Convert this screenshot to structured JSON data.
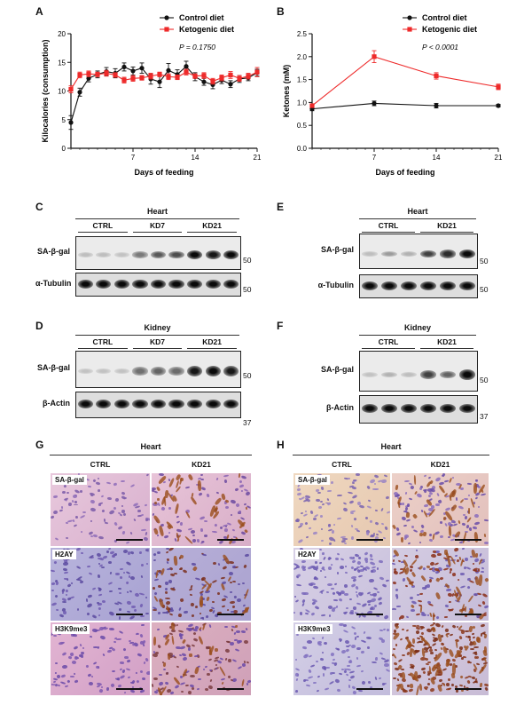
{
  "panels": {
    "A": "A",
    "B": "B",
    "C": "C",
    "D": "D",
    "E": "E",
    "F": "F",
    "G": "G",
    "H": "H"
  },
  "chart_data": [
    {
      "id": "A",
      "type": "line",
      "xlabel": "Days of feeding",
      "ylabel": "Kilocalories (consumption)",
      "xticks": [
        "7",
        "14",
        "21"
      ],
      "yticks": [
        "0",
        "5",
        "10",
        "15",
        "20"
      ],
      "xlim": [
        0,
        21
      ],
      "ylim": [
        0,
        20
      ],
      "pvalue": "P = 0.1750",
      "series": [
        {
          "name": "Control diet",
          "color": "#111111",
          "x": [
            0,
            1,
            2,
            3,
            4,
            5,
            6,
            7,
            8,
            9,
            10,
            11,
            12,
            13,
            14,
            15,
            16,
            17,
            18,
            19,
            20,
            21
          ],
          "y": [
            4.5,
            9.8,
            12.2,
            12.9,
            13.4,
            13.1,
            14.2,
            13.5,
            14.0,
            12.1,
            11.6,
            13.6,
            12.9,
            14.3,
            12.5,
            11.6,
            11.1,
            11.9,
            11.2,
            12.1,
            12.3,
            13.2
          ],
          "err": [
            1.2,
            0.7,
            0.6,
            0.6,
            0.7,
            0.8,
            0.7,
            0.7,
            0.9,
            0.9,
            1.0,
            1.2,
            0.8,
            0.9,
            0.7,
            0.6,
            0.7,
            0.6,
            0.6,
            0.6,
            0.5,
            0.6
          ]
        },
        {
          "name": "Ketogenic diet",
          "color": "#ee2a2a",
          "x": [
            0,
            1,
            2,
            3,
            4,
            5,
            6,
            7,
            8,
            9,
            10,
            11,
            12,
            13,
            14,
            15,
            16,
            17,
            18,
            19,
            20,
            21
          ],
          "y": [
            10.3,
            12.8,
            13.0,
            12.9,
            13.1,
            12.8,
            11.9,
            12.2,
            12.3,
            12.6,
            12.9,
            12.5,
            12.4,
            13.3,
            12.6,
            12.7,
            11.7,
            12.3,
            12.8,
            12.2,
            12.6,
            13.3
          ],
          "err": [
            0.6,
            0.5,
            0.5,
            0.4,
            0.5,
            0.4,
            0.5,
            0.5,
            0.4,
            0.5,
            0.4,
            0.5,
            0.4,
            0.5,
            0.4,
            0.5,
            0.5,
            0.5,
            0.6,
            0.5,
            0.5,
            0.8
          ]
        }
      ]
    },
    {
      "id": "B",
      "type": "line",
      "xlabel": "Days of feeding",
      "ylabel": "Ketones (mM)",
      "xticks": [
        "7",
        "14",
        "21"
      ],
      "yticks": [
        "0.0",
        "0.5",
        "1.0",
        "1.5",
        "2.0",
        "2.5"
      ],
      "xlim": [
        0,
        21
      ],
      "ylim": [
        0,
        2.5
      ],
      "pvalue": "P < 0.0001",
      "series": [
        {
          "name": "Control diet",
          "color": "#111111",
          "x": [
            0,
            7,
            14,
            21
          ],
          "y": [
            0.86,
            0.98,
            0.93,
            0.93
          ],
          "err": [
            0.04,
            0.05,
            0.05,
            0.03
          ]
        },
        {
          "name": "Ketogenic diet",
          "color": "#ee2a2a",
          "x": [
            0,
            7,
            14,
            21
          ],
          "y": [
            0.93,
            2.0,
            1.58,
            1.34
          ],
          "err": [
            0.04,
            0.13,
            0.07,
            0.06
          ]
        }
      ]
    }
  ],
  "blots": {
    "heart_title": "Heart",
    "kidney_title": "Kidney",
    "groups_3": [
      "CTRL",
      "KD7",
      "KD21"
    ],
    "groups_2": [
      "CTRL",
      "KD21"
    ],
    "sa_label": "SA-β-gal",
    "tubulin_label": "α-Tubulin",
    "actin_label": "β-Actin",
    "mw_50": "50",
    "mw_37": "37"
  },
  "histology": {
    "G_title": "Heart",
    "H_title": "Heart",
    "cols": [
      "CTRL",
      "KD21"
    ],
    "rows": [
      "SA-β-gal",
      "H2AY",
      "H3K9me3"
    ]
  }
}
